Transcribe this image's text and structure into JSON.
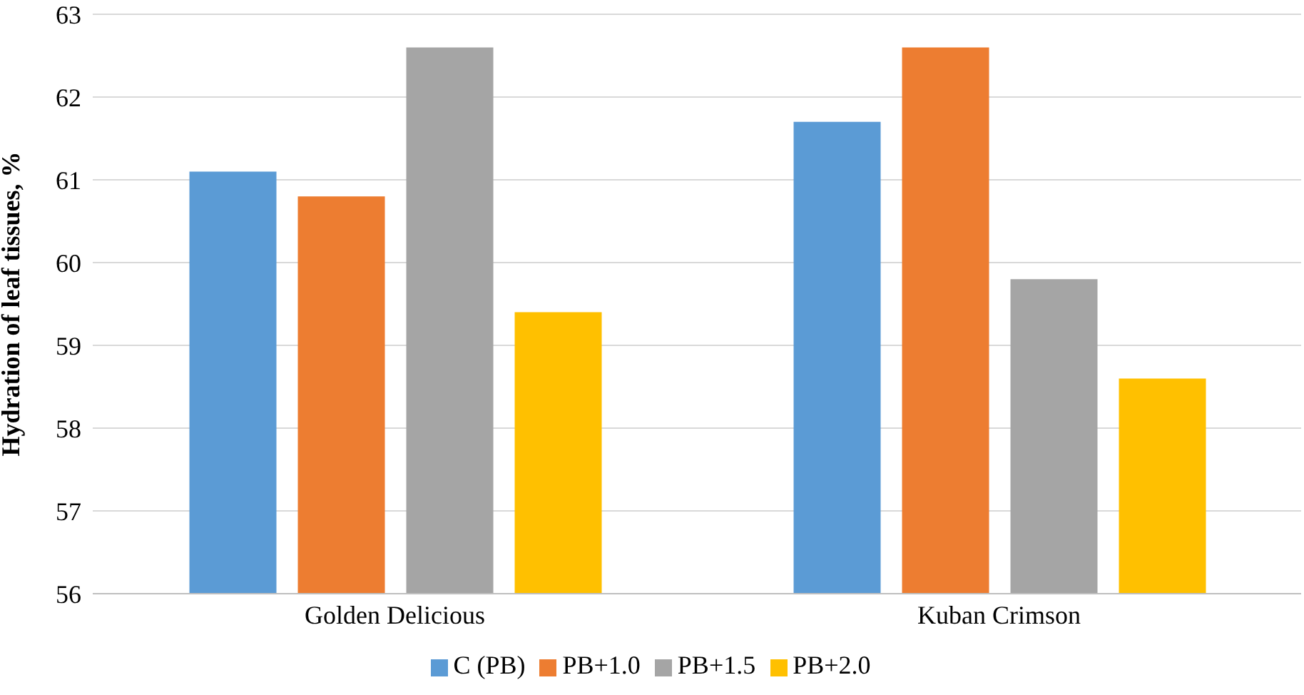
{
  "chart_data": {
    "type": "bar",
    "ylabel": "Hydration of leaf tissues, %",
    "categories": [
      "Golden Delicious",
      "Kuban Crimson"
    ],
    "series": [
      {
        "name": "C (PB)",
        "color": "#5b9bd5",
        "values": [
          61.1,
          61.7
        ]
      },
      {
        "name": "PB+1.0",
        "color": "#ed7d31",
        "values": [
          60.8,
          62.6
        ]
      },
      {
        "name": "PB+1.5",
        "color": "#a5a5a5",
        "values": [
          62.6,
          59.8
        ]
      },
      {
        "name": "PB+2.0",
        "color": "#ffc000",
        "values": [
          59.4,
          58.6
        ]
      }
    ],
    "ylim": [
      56,
      63
    ],
    "yticks": [
      56,
      57,
      58,
      59,
      60,
      61,
      62,
      63
    ],
    "grid": "y",
    "legend": "bottom"
  }
}
